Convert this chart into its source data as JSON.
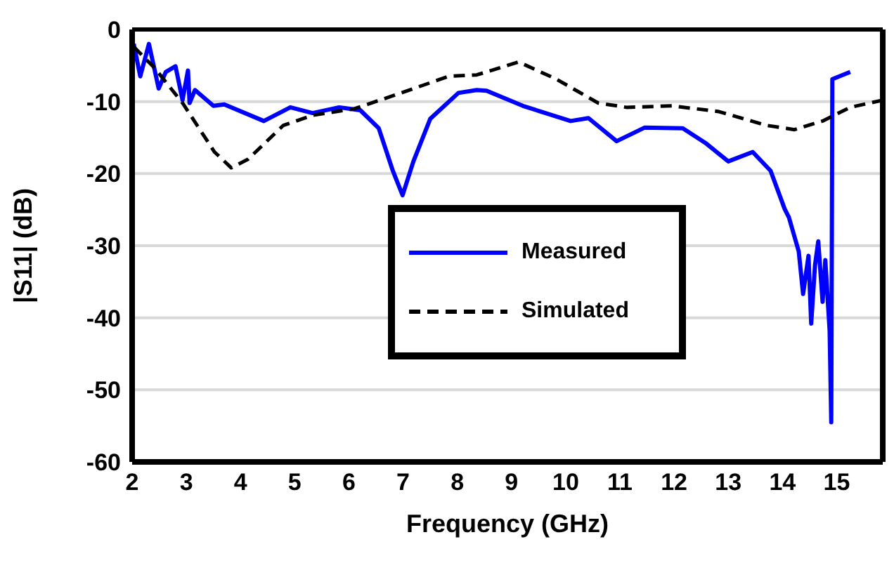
{
  "chart_data": {
    "type": "line",
    "xlabel": "Frequency (GHz)",
    "ylabel": "|S11| (dB)",
    "xlim": [
      2,
      15.85
    ],
    "xticks": [
      2,
      3,
      4,
      5,
      6,
      7,
      8,
      9,
      10,
      11,
      12,
      13,
      14,
      15
    ],
    "ylim": [
      -60,
      0
    ],
    "yticks": [
      -60,
      -50,
      -40,
      -30,
      -20,
      -10,
      0
    ],
    "grid": "y",
    "legend": "center",
    "marker": "none",
    "series": [
      {
        "name": "Measured",
        "color": "#0000ff",
        "line_style": "solid",
        "x": [
          2.03,
          2.15,
          2.31,
          2.49,
          2.62,
          2.8,
          2.93,
          3.03,
          3.06,
          3.16,
          3.5,
          3.7,
          4.43,
          4.92,
          5.33,
          5.82,
          6.21,
          6.55,
          6.81,
          6.99,
          7.19,
          7.5,
          8.02,
          8.36,
          8.54,
          9.21,
          10.09,
          10.42,
          10.94,
          11.46,
          12.16,
          12.57,
          13.0,
          13.45,
          13.78,
          14.04,
          14.12,
          14.3,
          14.38,
          14.48,
          14.53,
          14.6,
          14.66,
          14.74,
          14.79,
          14.87,
          14.9,
          14.92,
          15.25
        ],
        "values": [
          -2.0,
          -6.5,
          -2.0,
          -8.2,
          -5.9,
          -5.1,
          -9.8,
          -5.7,
          -10.2,
          -8.4,
          -10.6,
          -10.4,
          -12.7,
          -10.8,
          -11.6,
          -10.8,
          -11.2,
          -13.7,
          -19.6,
          -23.0,
          -18.3,
          -12.4,
          -8.8,
          -8.4,
          -8.5,
          -10.6,
          -12.7,
          -12.3,
          -15.5,
          -13.6,
          -13.7,
          -15.7,
          -18.3,
          -17.0,
          -19.6,
          -24.9,
          -26.1,
          -30.8,
          -36.7,
          -31.4,
          -40.8,
          -32.7,
          -29.4,
          -37.8,
          -32.0,
          -41.8,
          -54.5,
          -6.9,
          -5.9
        ]
      },
      {
        "name": "Simulated",
        "color": "#000000",
        "line_style": "dashed",
        "x": [
          2.03,
          2.41,
          2.93,
          3.52,
          3.83,
          4.14,
          4.79,
          5.33,
          6.1,
          6.81,
          7.84,
          8.36,
          9.13,
          9.83,
          10.6,
          11.12,
          11.97,
          12.83,
          13.7,
          14.22,
          14.74,
          15.25,
          15.85
        ],
        "values": [
          -2.4,
          -5.3,
          -10.2,
          -17,
          -19.2,
          -18,
          -13.3,
          -11.9,
          -11,
          -9.2,
          -6.5,
          -6.3,
          -4.5,
          -6.9,
          -10.2,
          -10.8,
          -10.6,
          -11.4,
          -13.3,
          -13.9,
          -12.7,
          -10.8,
          -9.8
        ]
      }
    ]
  }
}
